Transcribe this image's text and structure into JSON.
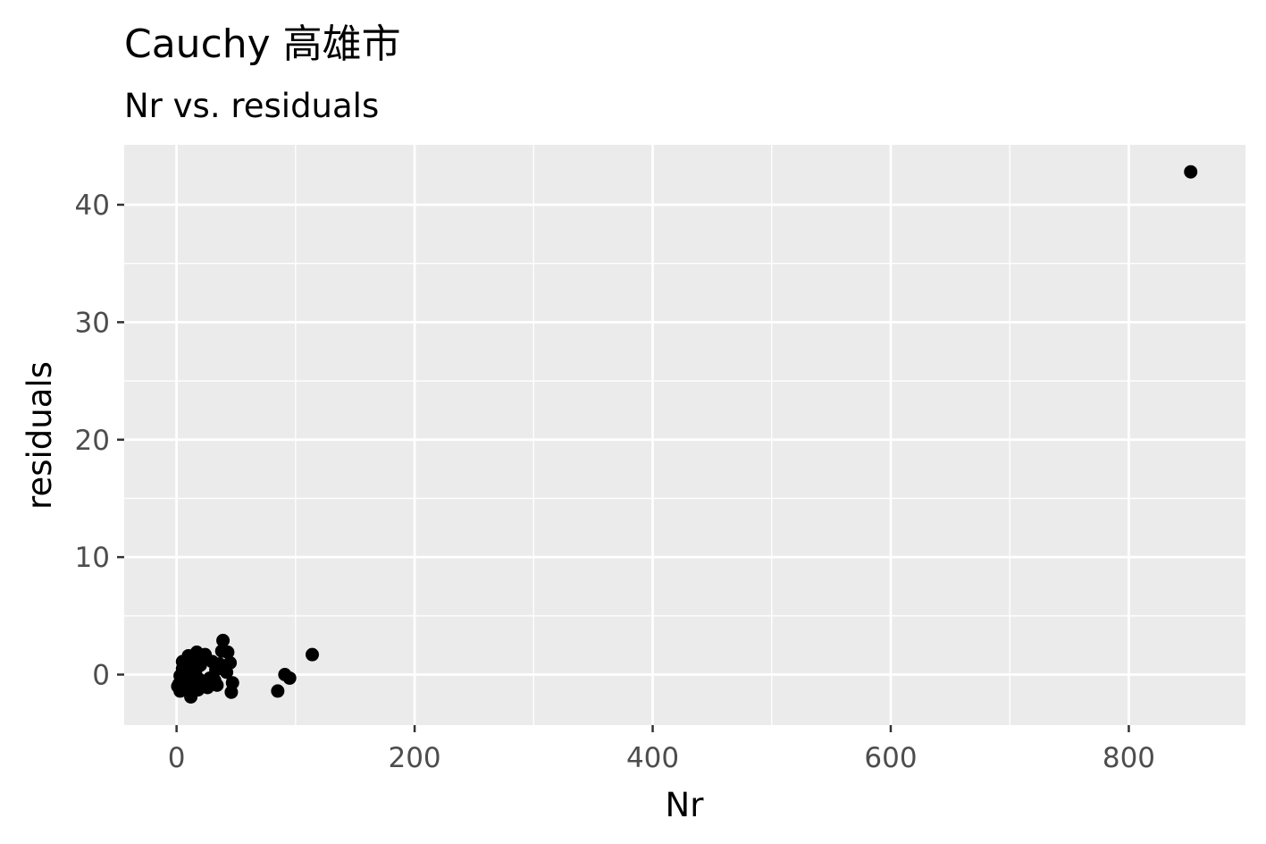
{
  "chart_data": {
    "type": "scatter",
    "title": "Cauchy 高雄市",
    "subtitle": "Nr vs. residuals",
    "xlabel": "Nr",
    "ylabel": "residuals",
    "xlim": [
      -44,
      898
    ],
    "ylim": [
      -4.3,
      45.1
    ],
    "x_ticks_major": [
      0,
      200,
      400,
      600,
      800
    ],
    "x_ticks_minor": [
      100,
      300,
      500,
      700
    ],
    "y_ticks_major": [
      0,
      10,
      20,
      30,
      40
    ],
    "y_ticks_minor": [
      5,
      15,
      25,
      35
    ],
    "grid": true,
    "legend": "none",
    "colors": {
      "panel": "#ebebeb",
      "grid": "#ffffff",
      "point": "#000000",
      "tick_text": "#4d4d4d",
      "tick_mark": "#333333"
    },
    "points": [
      {
        "x": 852,
        "y": 42.8
      },
      {
        "x": 114,
        "y": 1.7
      },
      {
        "x": 91,
        "y": 0.0
      },
      {
        "x": 95,
        "y": -0.3
      },
      {
        "x": 85,
        "y": -1.4
      },
      {
        "x": 39,
        "y": 2.9
      },
      {
        "x": 38,
        "y": 2.0
      },
      {
        "x": 43,
        "y": 1.9
      },
      {
        "x": 45,
        "y": 1.0
      },
      {
        "x": 42,
        "y": 0.2
      },
      {
        "x": 47,
        "y": -0.7
      },
      {
        "x": 46,
        "y": -1.5
      },
      {
        "x": 36,
        "y": 0.9
      },
      {
        "x": 33,
        "y": 0.4
      },
      {
        "x": 32,
        "y": -0.5
      },
      {
        "x": 28,
        "y": -0.3
      },
      {
        "x": 26,
        "y": -1.1
      },
      {
        "x": 24,
        "y": 1.7
      },
      {
        "x": 22,
        "y": 1.3
      },
      {
        "x": 20,
        "y": 0.8
      },
      {
        "x": 17,
        "y": 1.9
      },
      {
        "x": 14,
        "y": 1.6
      },
      {
        "x": 16,
        "y": 0.3
      },
      {
        "x": 13,
        "y": -0.2
      },
      {
        "x": 11,
        "y": -0.9
      },
      {
        "x": 12,
        "y": -1.9
      },
      {
        "x": 10,
        "y": 1.6
      },
      {
        "x": 9,
        "y": 0.9
      },
      {
        "x": 8,
        "y": 0.2
      },
      {
        "x": 7,
        "y": -0.6
      },
      {
        "x": 6,
        "y": -1.3
      },
      {
        "x": 5,
        "y": 1.1
      },
      {
        "x": 5,
        "y": 0.5
      },
      {
        "x": 4,
        "y": -0.4
      },
      {
        "x": 3,
        "y": -0.1
      },
      {
        "x": 2,
        "y": -0.8
      },
      {
        "x": 1,
        "y": -1.0
      },
      {
        "x": 3,
        "y": -1.4
      },
      {
        "x": 6,
        "y": 0.0
      },
      {
        "x": 8,
        "y": -1.2
      },
      {
        "x": 15,
        "y": -0.8
      },
      {
        "x": 18,
        "y": -1.3
      },
      {
        "x": 19,
        "y": -0.4
      },
      {
        "x": 30,
        "y": 1.1
      },
      {
        "x": 34,
        "y": -0.9
      },
      {
        "x": 12,
        "y": 0.6
      },
      {
        "x": 10,
        "y": -0.3
      }
    ]
  }
}
